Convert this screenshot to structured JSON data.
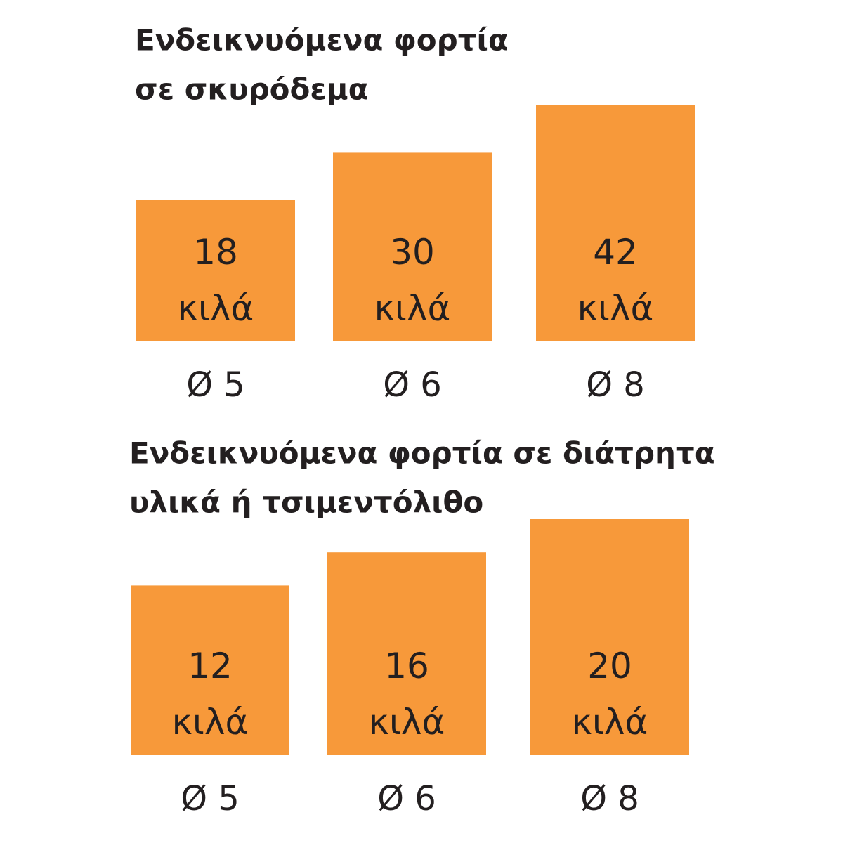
{
  "chart_data": [
    {
      "type": "bar",
      "title": [
        "Ενδεικνυόμενα φορτία",
        "σε σκυρόδεμα"
      ],
      "categories": [
        "Ø 5",
        "Ø 6",
        "Ø 8"
      ],
      "values": [
        18,
        30,
        42
      ],
      "unit": "κιλά",
      "color": "#f7993a"
    },
    {
      "type": "bar",
      "title": [
        "Ενδεικνυόμενα φορτία σε διάτρητα",
        "υλικά ή τσιμεντόλιθο"
      ],
      "categories": [
        "Ø 5",
        "Ø 6",
        "Ø 8"
      ],
      "values": [
        12,
        16,
        20
      ],
      "unit": "κιλά",
      "color": "#f7993a"
    }
  ]
}
